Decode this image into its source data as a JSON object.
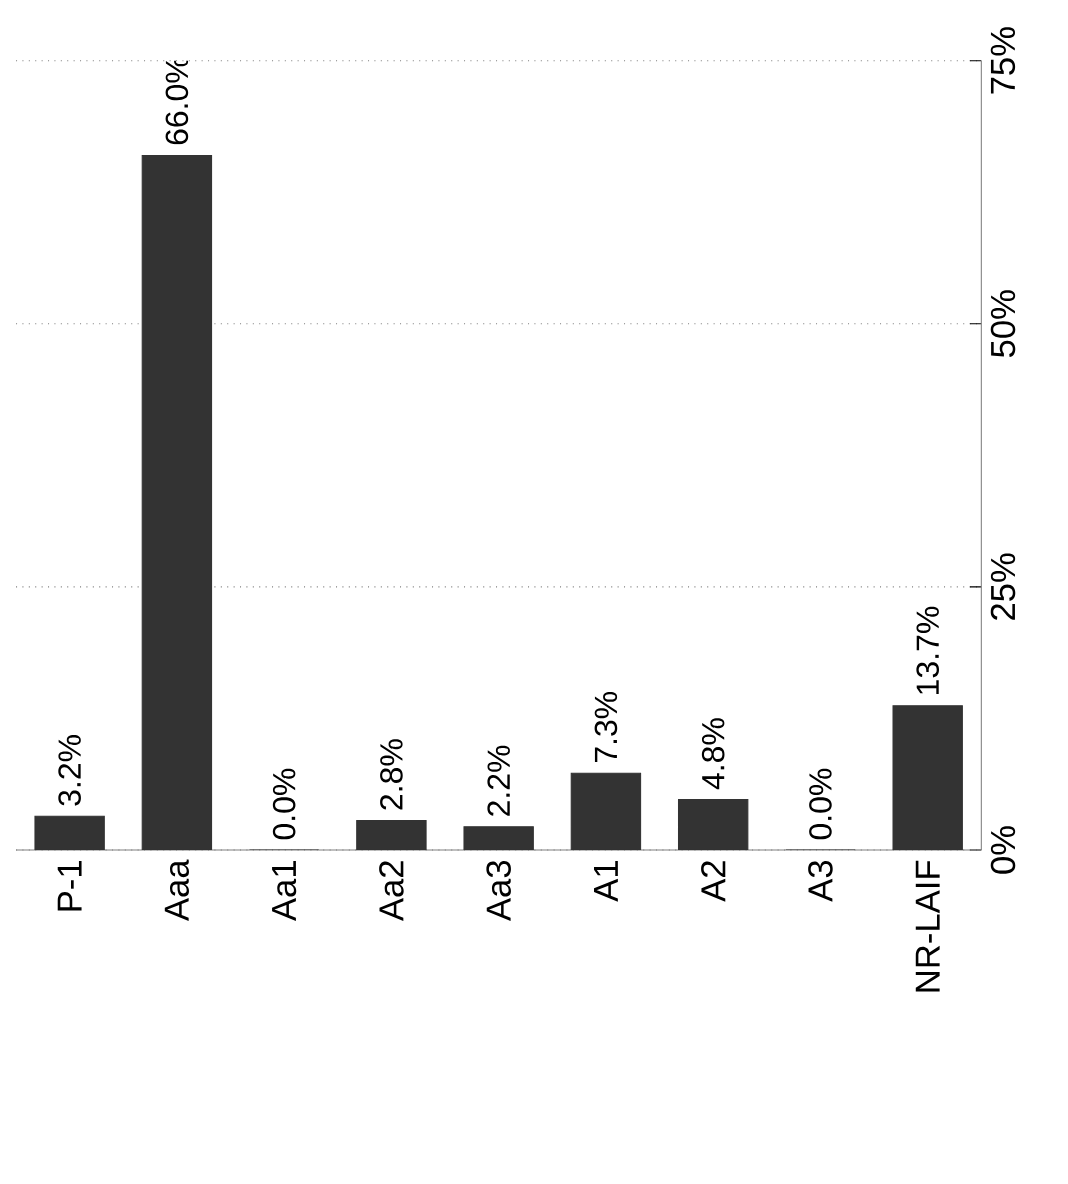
{
  "chart_data": {
    "type": "bar",
    "categories": [
      "P-1",
      "Aaa",
      "Aa1",
      "Aa2",
      "Aa3",
      "A1",
      "A2",
      "A3",
      "NR-LAIF"
    ],
    "values": [
      3.2,
      66.0,
      0.0,
      2.8,
      2.2,
      7.3,
      4.8,
      0.0,
      13.7
    ],
    "value_labels": [
      "3.2%",
      "66.0%",
      "0.0%",
      "2.8%",
      "2.2%",
      "7.3%",
      "4.8%",
      "0.0%",
      "13.7%"
    ],
    "color": "#333333",
    "ylim": [
      0,
      75
    ],
    "yticks": [
      {
        "value": 0,
        "label": "0%"
      },
      {
        "value": 25,
        "label": "25%"
      },
      {
        "value": 50,
        "label": "50%"
      },
      {
        "value": 75,
        "label": "75%"
      }
    ],
    "grid": "y"
  }
}
